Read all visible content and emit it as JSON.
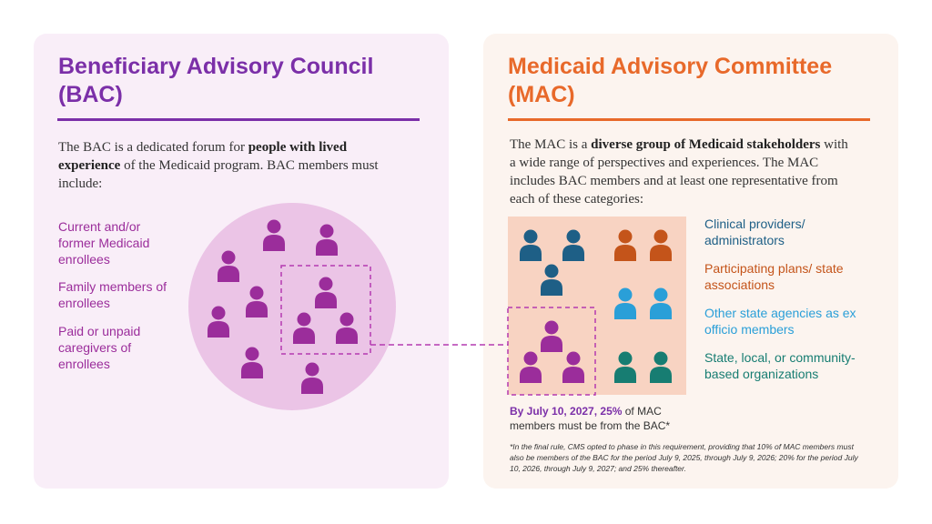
{
  "bac": {
    "title_line1": "Beneficiary Advisory Council",
    "title_line2": "(BAC)",
    "intro_pre": "The BAC is a dedicated forum for ",
    "intro_bold": "people with lived experience",
    "intro_post": " of the Medicaid program. BAC members must include:",
    "members": [
      {
        "label": "Current and/or former Medicaid enrollees"
      },
      {
        "label": "Family members of enrollees"
      },
      {
        "label": "Paid or unpaid caregivers of enrollees"
      }
    ],
    "color": "#7b2fa8"
  },
  "mac": {
    "title_line1": "Medicaid Advisory Committee",
    "title_line2": "(MAC)",
    "intro_pre": "The MAC is a ",
    "intro_bold": "diverse group of Medicaid stakeholders",
    "intro_post": " with a wide range of perspectives and experiences. The MAC includes BAC members and at least one representative from each of these categories:",
    "categories": [
      {
        "label": "Clinical providers/ administrators",
        "color": "#1e5f86"
      },
      {
        "label": "Participating plans/ state associations",
        "color": "#c4541a"
      },
      {
        "label": "Other state agencies as ex officio members",
        "color": "#2a9fd8"
      },
      {
        "label": "State, local, or community-based organizations",
        "color": "#177d72"
      }
    ],
    "requirement_bold": "By July 10, 2027, 25%",
    "requirement_rest": " of MAC members must be from the BAC*",
    "footnote": "*In the final rule, CMS opted to phase in this requirement, providing that 10% of MAC members must also be members of the BAC for the period July 9, 2025, through July 9, 2026; 20% for the period July 10, 2026, through July 9, 2027; and 25% thereafter.",
    "color": "#e8692a"
  },
  "colors": {
    "bac_purple": "#9b2d9b",
    "circle_fill": "#ebc4e6",
    "mac_box_fill": "#f8d3c2",
    "dash_line": "#b43ab0"
  }
}
